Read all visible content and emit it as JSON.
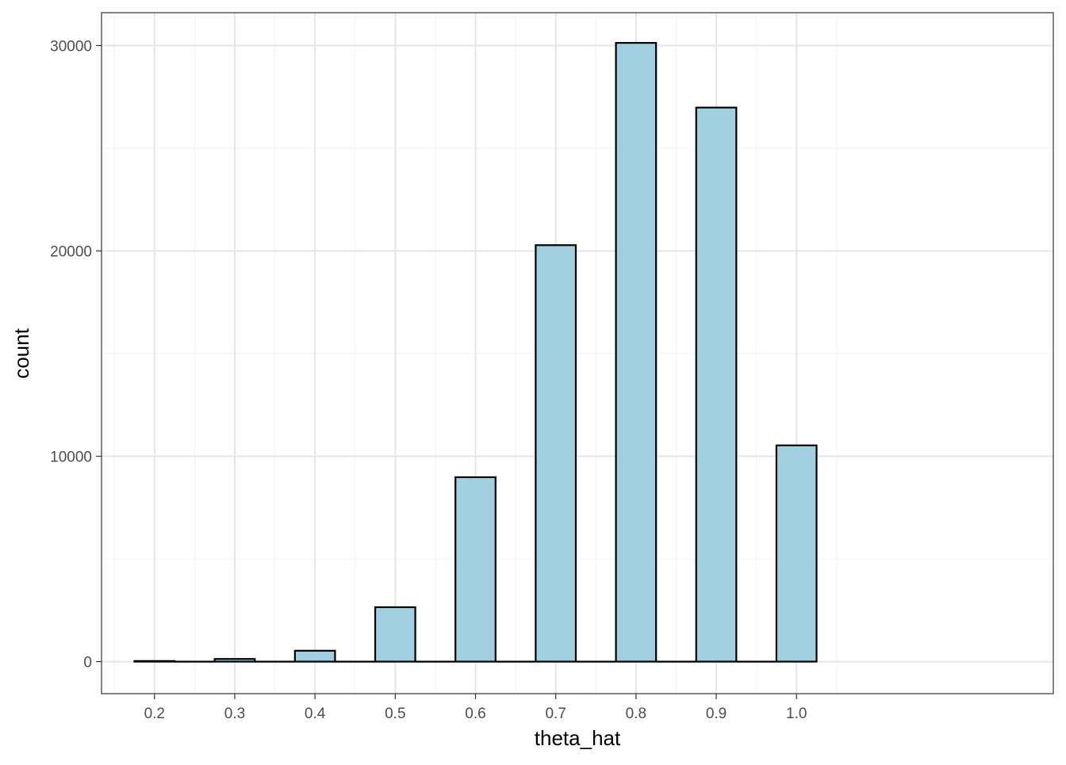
{
  "chart_data": {
    "type": "bar",
    "title": "",
    "xlabel": "theta_hat",
    "ylabel": "count",
    "categories": [
      "0.2",
      "0.3",
      "0.4",
      "0.5",
      "0.6",
      "0.7",
      "0.8",
      "0.9",
      "1.0"
    ],
    "x": [
      0.2,
      0.3,
      0.4,
      0.5,
      0.6,
      0.7,
      0.8,
      0.9,
      1.0
    ],
    "values": [
      30,
      130,
      530,
      2650,
      8980,
      20280,
      30130,
      26980,
      10530
    ],
    "bar_width": 0.05,
    "xlim": [
      0.134,
      1.32
    ],
    "ylim": [
      -1560,
      31600
    ],
    "x_ticks": [
      "0.2",
      "0.3",
      "0.4",
      "0.5",
      "0.6",
      "0.7",
      "0.8",
      "0.9",
      "1.0"
    ],
    "y_ticks": [
      0,
      10000,
      20000,
      30000
    ],
    "y_tick_labels": [
      "0",
      "10000",
      "20000",
      "30000"
    ],
    "grid": true,
    "legend": "none",
    "colors": {
      "bar_fill": "#a2cfe0",
      "bar_stroke": "#000000",
      "grid_major": "#e5e5e5",
      "grid_minor": "#f1f1f1",
      "panel_border": "#333333",
      "tick_label": "#4d4d4d"
    }
  }
}
